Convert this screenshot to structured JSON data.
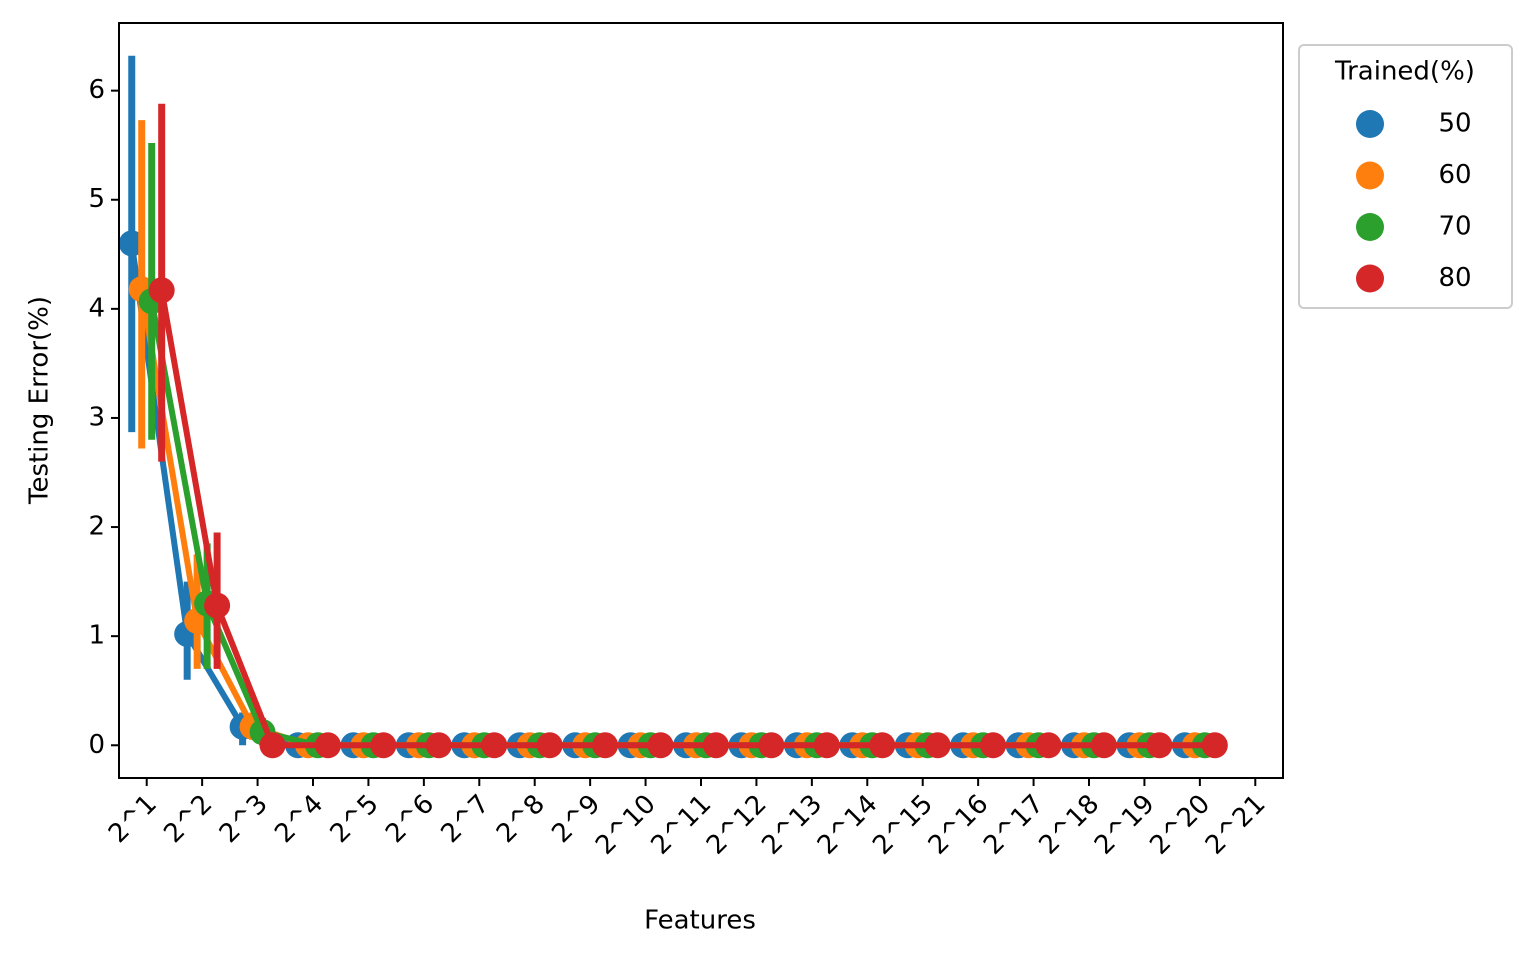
{
  "chart_data": {
    "type": "pointplot",
    "xlabel": "Features",
    "ylabel": "Testing Error(%)",
    "categories": [
      "2^1",
      "2^2",
      "2^3",
      "2^4",
      "2^5",
      "2^6",
      "2^7",
      "2^8",
      "2^9",
      "2^10",
      "2^11",
      "2^12",
      "2^13",
      "2^14",
      "2^15",
      "2^16",
      "2^17",
      "2^18",
      "2^19",
      "2^20",
      "2^21"
    ],
    "ylim": [
      -0.3,
      6.62
    ],
    "yticks": [
      0,
      1,
      2,
      3,
      4,
      5,
      6
    ],
    "legend": {
      "title": "Trained(%)",
      "position": "outside upper right"
    },
    "series": [
      {
        "name": "50",
        "color": "#1f77b4",
        "values": [
          4.6,
          1.02,
          0.17,
          0,
          0,
          0,
          0,
          0,
          0,
          0,
          0,
          0,
          0,
          0,
          0,
          0,
          0,
          0,
          0,
          0,
          null
        ],
        "ci": [
          [
            2.87,
            6.32
          ],
          [
            0.6,
            1.5
          ],
          [
            0,
            0.3
          ],
          [
            0,
            0
          ],
          [
            0,
            0
          ],
          [
            0,
            0
          ],
          [
            0,
            0
          ],
          [
            0,
            0
          ],
          [
            0,
            0
          ],
          [
            0,
            0
          ],
          [
            0,
            0
          ],
          [
            0,
            0
          ],
          [
            0,
            0
          ],
          [
            0,
            0
          ],
          [
            0,
            0
          ],
          [
            0,
            0
          ],
          [
            0,
            0
          ],
          [
            0,
            0
          ],
          [
            0,
            0
          ],
          [
            0,
            0
          ],
          null
        ]
      },
      {
        "name": "60",
        "color": "#ff7f0e",
        "values": [
          4.18,
          1.14,
          0.17,
          0,
          0,
          0,
          0,
          0,
          0,
          0,
          0,
          0,
          0,
          0,
          0,
          0,
          0,
          0,
          0,
          0,
          null
        ],
        "ci": [
          [
            2.72,
            5.73
          ],
          [
            0.7,
            1.75
          ],
          [
            0.05,
            0.3
          ],
          [
            0,
            0
          ],
          [
            0,
            0
          ],
          [
            0,
            0
          ],
          [
            0,
            0
          ],
          [
            0,
            0
          ],
          [
            0,
            0
          ],
          [
            0,
            0
          ],
          [
            0,
            0
          ],
          [
            0,
            0
          ],
          [
            0,
            0
          ],
          [
            0,
            0
          ],
          [
            0,
            0
          ],
          [
            0,
            0
          ],
          [
            0,
            0
          ],
          [
            0,
            0
          ],
          [
            0,
            0
          ],
          [
            0,
            0
          ],
          null
        ]
      },
      {
        "name": "70",
        "color": "#2ca02c",
        "values": [
          4.07,
          1.3,
          0.12,
          0,
          0,
          0,
          0,
          0,
          0,
          0,
          0,
          0,
          0,
          0,
          0,
          0,
          0,
          0,
          0,
          0,
          null
        ],
        "ci": [
          [
            2.8,
            5.52
          ],
          [
            0.7,
            1.85
          ],
          [
            0,
            0.25
          ],
          [
            0,
            0
          ],
          [
            0,
            0
          ],
          [
            0,
            0
          ],
          [
            0,
            0
          ],
          [
            0,
            0
          ],
          [
            0,
            0
          ],
          [
            0,
            0
          ],
          [
            0,
            0
          ],
          [
            0,
            0
          ],
          [
            0,
            0
          ],
          [
            0,
            0
          ],
          [
            0,
            0
          ],
          [
            0,
            0
          ],
          [
            0,
            0
          ],
          [
            0,
            0
          ],
          [
            0,
            0
          ],
          [
            0,
            0
          ],
          null
        ]
      },
      {
        "name": "80",
        "color": "#d62728",
        "values": [
          4.17,
          1.28,
          0,
          0,
          0,
          0,
          0,
          0,
          0,
          0,
          0,
          0,
          0,
          0,
          0,
          0,
          0,
          0,
          0,
          0,
          null
        ],
        "ci": [
          [
            2.6,
            5.88
          ],
          [
            0.7,
            1.95
          ],
          [
            0,
            0
          ],
          [
            0,
            0
          ],
          [
            0,
            0
          ],
          [
            0,
            0
          ],
          [
            0,
            0
          ],
          [
            0,
            0
          ],
          [
            0,
            0
          ],
          [
            0,
            0
          ],
          [
            0,
            0
          ],
          [
            0,
            0
          ],
          [
            0,
            0
          ],
          [
            0,
            0
          ],
          [
            0,
            0
          ],
          [
            0,
            0
          ],
          [
            0,
            0
          ],
          [
            0,
            0
          ],
          [
            0,
            0
          ],
          [
            0,
            0
          ],
          null
        ]
      }
    ]
  }
}
